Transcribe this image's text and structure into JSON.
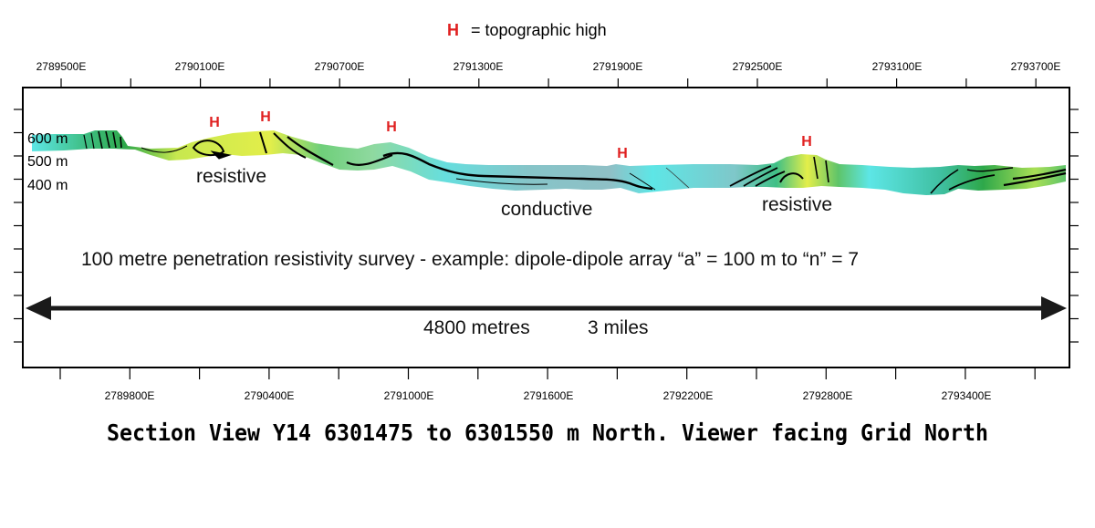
{
  "legend": {
    "symbol": "H",
    "text": "= topographic high"
  },
  "axis_top": {
    "ticks": [
      "2789500E",
      "2790100E",
      "2790700E",
      "2791300E",
      "2791900E",
      "2792500E",
      "2793100E",
      "2793700E"
    ]
  },
  "axis_bottom": {
    "ticks": [
      "2789800E",
      "2790400E",
      "2791000E",
      "2791600E",
      "2792200E",
      "2792800E",
      "2793400E"
    ]
  },
  "depth_labels": [
    "600 m",
    "500 m",
    "400 m"
  ],
  "topographic_highs": [
    "H",
    "H",
    "H",
    "H",
    "H"
  ],
  "annotations": {
    "resistive_left": "resistive",
    "conductive": "conductive",
    "resistive_right": "resistive"
  },
  "survey_text": "100 metre penetration resistivity survey - example: dipole-dipole array   “a” = 100 m to “n” = 7",
  "distance": {
    "metres": "4800 metres",
    "miles": "3 miles"
  },
  "section_title": "Section View Y14  6301475 to 6301550 m North.  Viewer facing Grid North",
  "colors": {
    "conductive": "#5de6e6",
    "moderate": "#7fc7c9",
    "resistive_green": "#2ea84a",
    "resistive_yellow": "#e3ee4a",
    "legend_h": "#e02020"
  }
}
